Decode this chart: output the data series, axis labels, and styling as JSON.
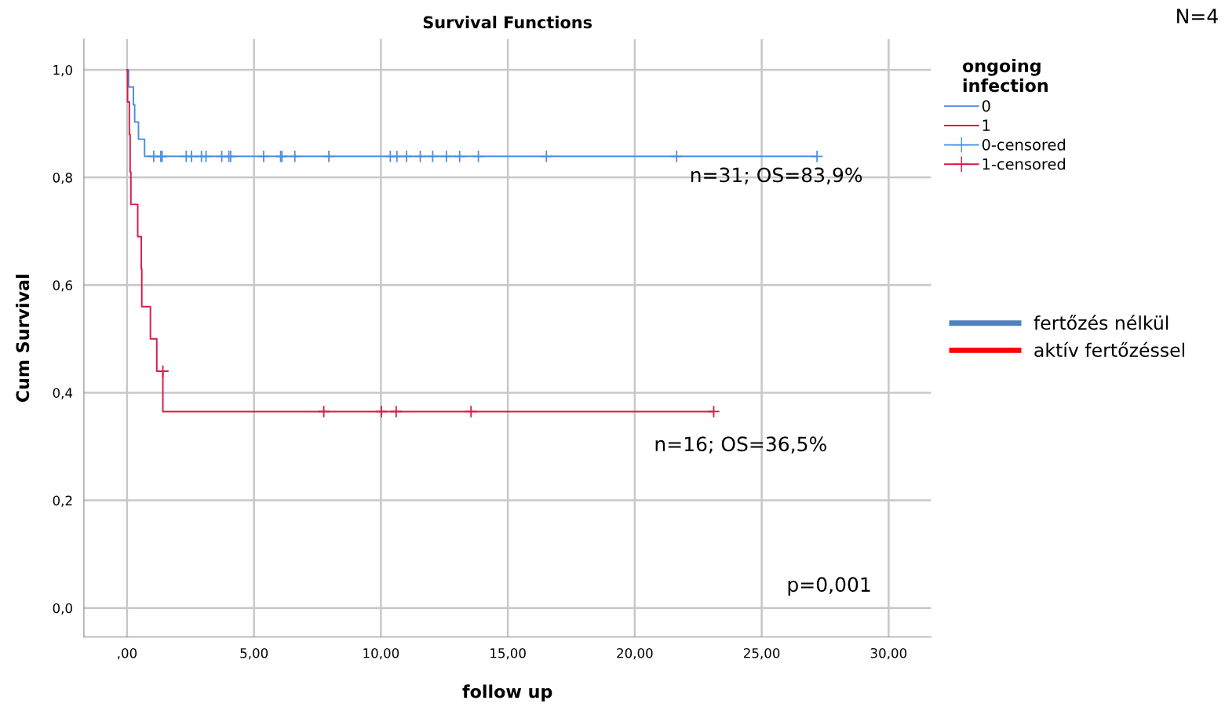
{
  "chart_data": {
    "type": "step",
    "title": "Survival Functions",
    "xlabel": "follow up",
    "ylabel": "Cum Survival",
    "legend_title": "ongoing\ninfection",
    "xlim": [
      -1.7,
      31.67
    ],
    "ylim": [
      -0.054,
      1.057
    ],
    "xticks": [
      {
        "value": 0,
        "label": ",00"
      },
      {
        "value": 5,
        "label": "5,00"
      },
      {
        "value": 10,
        "label": "10,00"
      },
      {
        "value": 15,
        "label": "15,00"
      },
      {
        "value": 20,
        "label": "20,00"
      },
      {
        "value": 25,
        "label": "25,00"
      },
      {
        "value": 30,
        "label": "30,00"
      }
    ],
    "yticks": [
      {
        "value": 0,
        "label": "0,0"
      },
      {
        "value": 0.2,
        "label": "0,2"
      },
      {
        "value": 0.4,
        "label": "0,4"
      },
      {
        "value": 0.6,
        "label": "0,6"
      },
      {
        "value": 0.8,
        "label": "0,8"
      },
      {
        "value": 1.0,
        "label": "1,0"
      }
    ],
    "grid": true,
    "legend": "top right",
    "series": [
      {
        "name": "0",
        "color": "#4a90e2",
        "x": [
          0,
          0.06,
          0.25,
          0.3,
          0.45,
          0.69,
          27.18
        ],
        "values": [
          1.0,
          0.968,
          0.935,
          0.903,
          0.871,
          0.839,
          0.839
        ]
      },
      {
        "name": "1",
        "color": "#d81b46",
        "x": [
          0,
          0.02,
          0.09,
          0.12,
          0.15,
          0.42,
          0.56,
          0.58,
          0.92,
          1.17,
          1.41,
          23.11
        ],
        "values": [
          1.0,
          0.94,
          0.88,
          0.81,
          0.75,
          0.69,
          0.63,
          0.56,
          0.5,
          0.44,
          0.365,
          0.365
        ]
      },
      {
        "name": "0-censored",
        "type": "scatter",
        "marker": "cross",
        "color": "#4a90e2",
        "x": [
          1.05,
          1.33,
          1.38,
          2.33,
          2.54,
          2.93,
          3.11,
          3.73,
          4.01,
          4.08,
          5.38,
          6.05,
          6.1,
          6.61,
          7.95,
          10.37,
          10.63,
          11.01,
          11.55,
          12.04,
          12.58,
          13.1,
          13.84,
          16.52,
          21.65,
          27.18
        ],
        "values": [
          0.839,
          0.839,
          0.839,
          0.839,
          0.839,
          0.839,
          0.839,
          0.839,
          0.839,
          0.839,
          0.839,
          0.839,
          0.839,
          0.839,
          0.839,
          0.839,
          0.839,
          0.839,
          0.839,
          0.839,
          0.839,
          0.839,
          0.839,
          0.839,
          0.839,
          0.839
        ]
      },
      {
        "name": "1-censored",
        "type": "scatter",
        "marker": "cross",
        "color": "#d81b46",
        "x": [
          1.41,
          7.75,
          10.02,
          10.6,
          13.55,
          23.11
        ],
        "values": [
          0.44,
          0.365,
          0.365,
          0.365,
          0.365,
          0.365
        ]
      },
      {
        "name": "fertőzés nélkül",
        "type": "line",
        "color": "#4f81bd"
      },
      {
        "name": "aktív fertőzéssel",
        "type": "line",
        "color": "#ff0000"
      }
    ],
    "annotations": [
      "n=31; OS=83,9%",
      "n=16; OS=36,5%",
      "p=0,001",
      "N=4"
    ]
  }
}
